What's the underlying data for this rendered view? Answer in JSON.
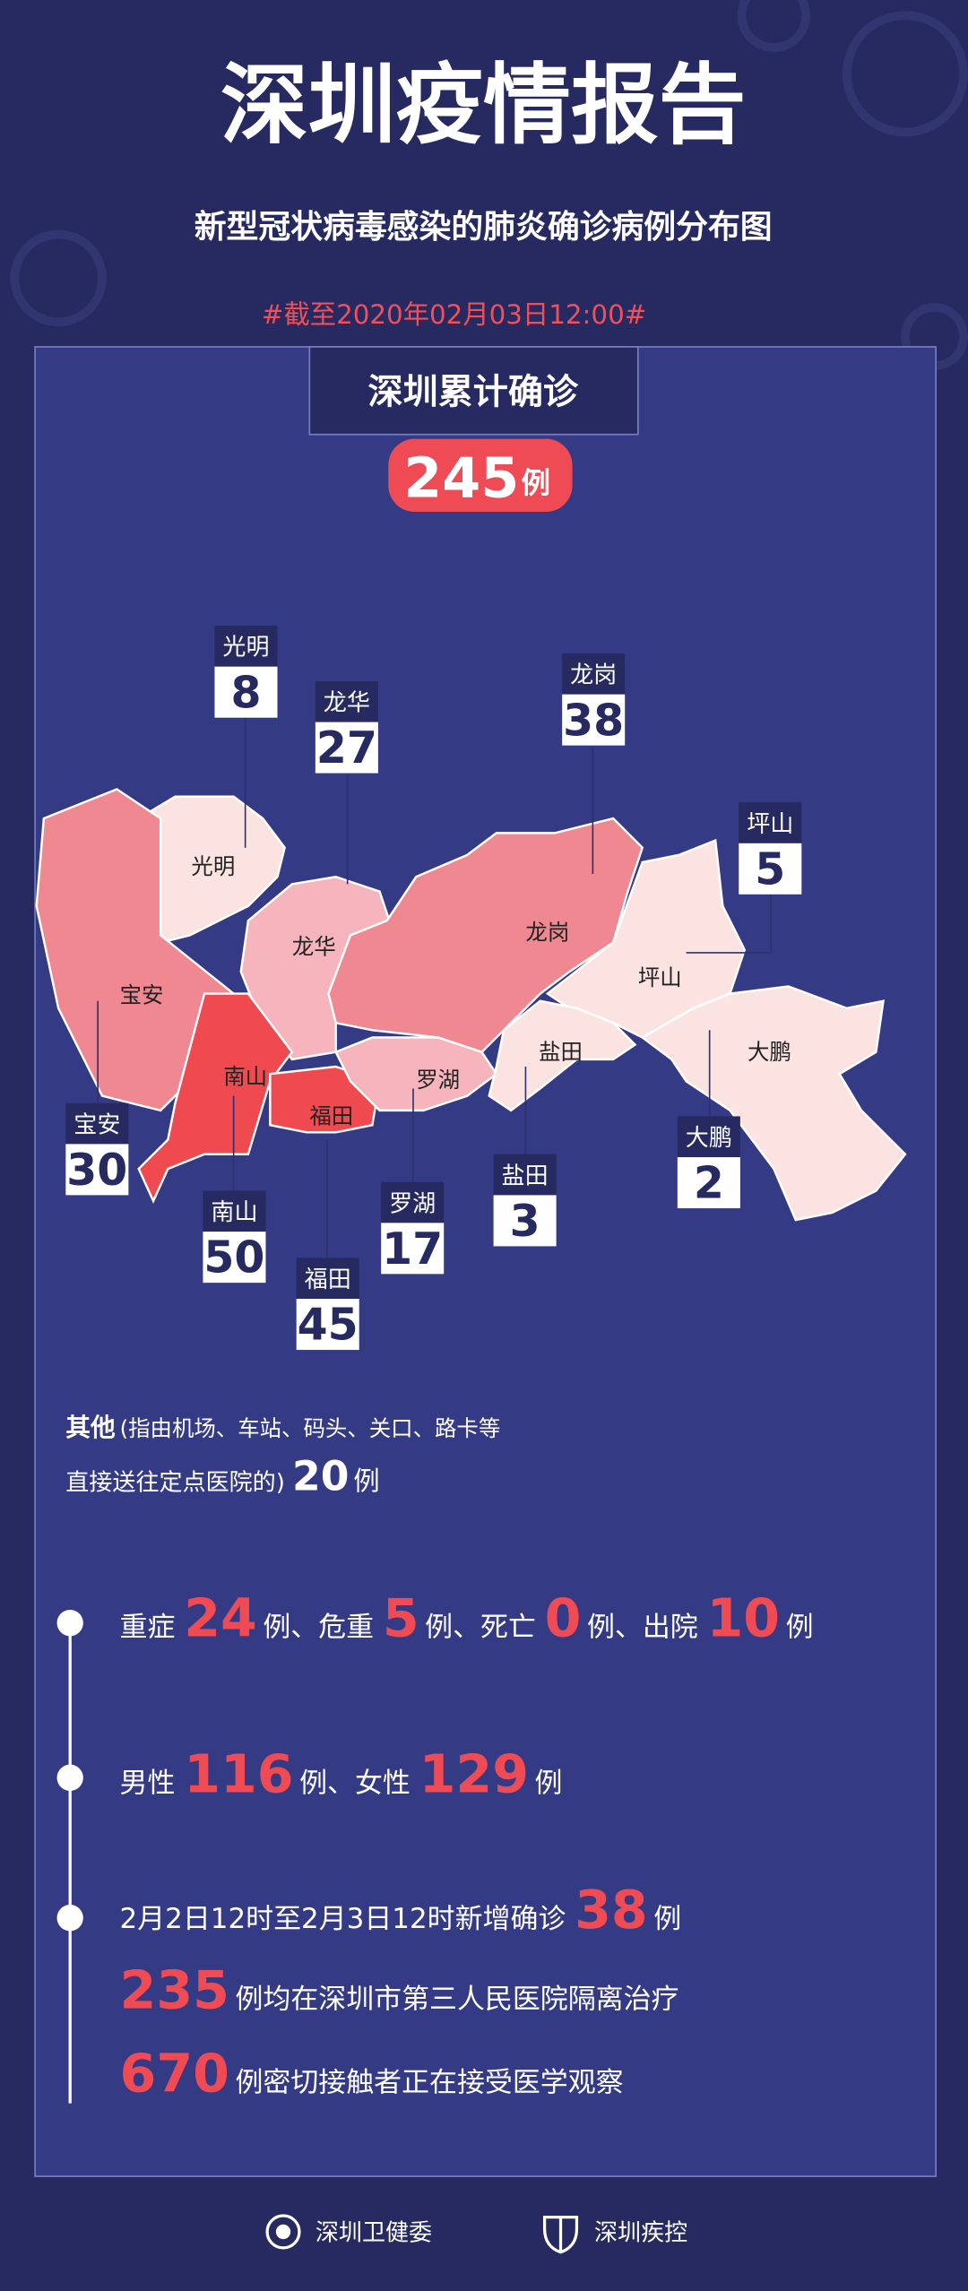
{
  "header": {
    "title": "深圳疫情报告",
    "subtitle": "新型冠状病毒感染的肺炎确诊病例分布图",
    "date": "#截至2020年02月03日12:00#"
  },
  "total": {
    "label": "深圳累计确诊",
    "value": 245,
    "unit": "例"
  },
  "districts": [
    {
      "name": "光明",
      "value": 8,
      "color": "#fbe3e1"
    },
    {
      "name": "龙华",
      "value": 27,
      "color": "#f6b5bd"
    },
    {
      "name": "龙岗",
      "value": 38,
      "color": "#f08891"
    },
    {
      "name": "坪山",
      "value": 5,
      "color": "#fbe3e1"
    },
    {
      "name": "宝安",
      "value": 30,
      "color": "#f08891"
    },
    {
      "name": "南山",
      "value": 50,
      "color": "#ef4a50"
    },
    {
      "name": "福田",
      "value": 45,
      "color": "#ef4a50"
    },
    {
      "name": "罗湖",
      "value": 17,
      "color": "#f6b5bd"
    },
    {
      "name": "盐田",
      "value": 3,
      "color": "#fbe3e1"
    },
    {
      "name": "大鹏",
      "value": 2,
      "color": "#fbe3e1"
    }
  ],
  "others": {
    "label": "其他",
    "note": "(指由机场、车站、码头、关口、路卡等",
    "note2": "直接送往定点医院的)",
    "value": 20,
    "unit": "例"
  },
  "timeline": [
    [
      "重症",
      24,
      "例、危重",
      5,
      "例、死亡",
      0,
      "例、出院",
      10,
      "例"
    ],
    [
      "男性",
      116,
      "例、女性",
      129,
      "例"
    ],
    [
      "2月2日12时至2月3日12时新增确诊",
      38,
      "例"
    ],
    [
      235,
      "例均在深圳市第三人民医院隔离治疗"
    ],
    [
      670,
      "例密切接触者正在接受医学观察"
    ]
  ],
  "footer": [
    "深圳卫健委",
    "深圳疾控"
  ]
}
